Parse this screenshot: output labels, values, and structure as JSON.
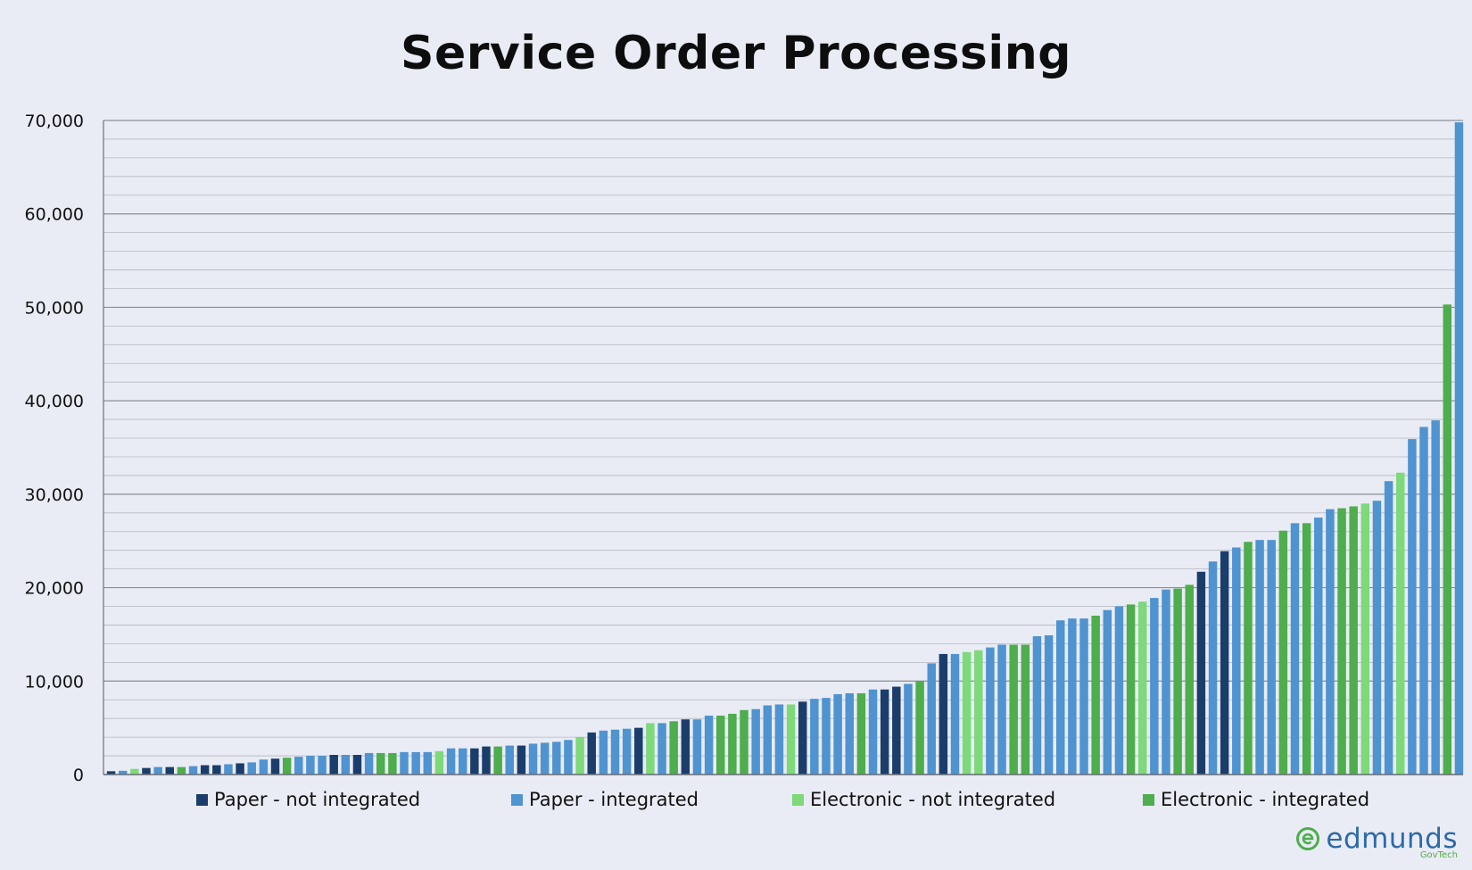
{
  "chart_data": {
    "type": "bar",
    "title": "Service Order Processing",
    "xlabel": "",
    "ylabel": "",
    "ylim": [
      0,
      70000
    ],
    "y_ticks": [
      "0",
      "10,000",
      "20,000",
      "30,000",
      "40,000",
      "50,000",
      "60,000",
      "70,000"
    ],
    "grid": true,
    "legend_position": "bottom",
    "series": [
      {
        "name": "Paper - not integrated",
        "color": "#1b3d6b"
      },
      {
        "name": "Paper - integrated",
        "color": "#4f93d0"
      },
      {
        "name": "Electronic - not integrated",
        "color": "#7dd97a"
      },
      {
        "name": "Electronic - integrated",
        "color": "#4ead4c"
      }
    ],
    "values": [
      350,
      400,
      600,
      700,
      800,
      800,
      800,
      900,
      1000,
      1000,
      1100,
      1200,
      1300,
      1600,
      1700,
      1800,
      1900,
      2000,
      2000,
      2100,
      2100,
      2100,
      2300,
      2300,
      2300,
      2400,
      2400,
      2400,
      2500,
      2800,
      2800,
      2800,
      3000,
      3000,
      3100,
      3100,
      3300,
      3400,
      3500,
      3700,
      4000,
      4500,
      4700,
      4800,
      4900,
      5000,
      5500,
      5500,
      5700,
      5900,
      5900,
      6300,
      6300,
      6500,
      6900,
      7000,
      7400,
      7500,
      7500,
      7800,
      8100,
      8200,
      8600,
      8700,
      8700,
      9100,
      9100,
      9400,
      9700,
      10000,
      11900,
      12900,
      12900,
      13100,
      13300,
      13600,
      13900,
      13900,
      13900,
      14800,
      14900,
      16500,
      16700,
      16700,
      17000,
      17600,
      18000,
      18200,
      18500,
      18900,
      19800,
      19900,
      20300,
      21700,
      22800,
      23900,
      24300,
      24900,
      25100,
      25100,
      26100,
      26900,
      26900,
      27500,
      28400,
      28500,
      28700,
      29000,
      29300,
      31400,
      32300,
      35900,
      37200,
      37900,
      50300,
      69800
    ],
    "categories_series": [
      0,
      1,
      2,
      0,
      1,
      0,
      3,
      1,
      0,
      0,
      1,
      0,
      1,
      1,
      0,
      3,
      1,
      1,
      1,
      0,
      1,
      0,
      1,
      3,
      3,
      1,
      1,
      1,
      2,
      1,
      1,
      0,
      0,
      3,
      1,
      0,
      1,
      1,
      1,
      1,
      2,
      0,
      1,
      1,
      1,
      0,
      2,
      1,
      3,
      0,
      1,
      1,
      3,
      3,
      3,
      1,
      1,
      1,
      2,
      0,
      1,
      1,
      1,
      1,
      3,
      1,
      0,
      0,
      1,
      3,
      1,
      0,
      1,
      2,
      2,
      1,
      1,
      3,
      3,
      1,
      1,
      1,
      1,
      1,
      3,
      1,
      1,
      3,
      2,
      1,
      1,
      3,
      3,
      0,
      1,
      0,
      1,
      3,
      1,
      1,
      3,
      1,
      3,
      1,
      1,
      3,
      3,
      2,
      1,
      1,
      2,
      1,
      1,
      1,
      3,
      1
    ]
  },
  "legend": {
    "items": [
      {
        "label": "Paper - not integrated",
        "color": "#1b3d6b"
      },
      {
        "label": "Paper - integrated",
        "color": "#4f93d0"
      },
      {
        "label": "Electronic - not integrated",
        "color": "#7dd97a"
      },
      {
        "label": "Electronic - integrated",
        "color": "#4ead4c"
      }
    ]
  },
  "logo": {
    "text": "edmunds",
    "subtext": "GovTech",
    "icon": "edmunds-logo-icon"
  }
}
